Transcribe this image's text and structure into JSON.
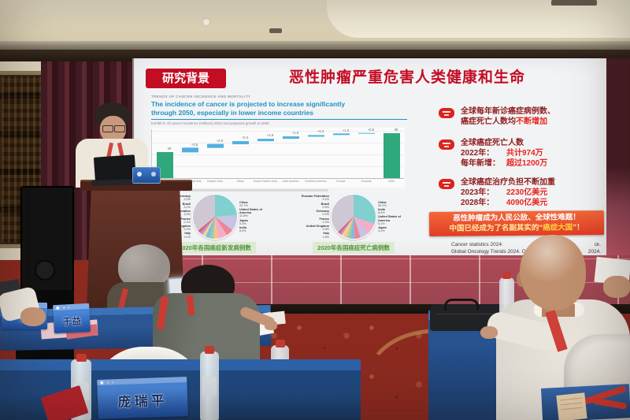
{
  "slide": {
    "section_tag": "研究背景",
    "title": "恶性肿瘤严重危害人类健康和生命",
    "trends": {
      "kicker": "TRENDS OF CANCER INCIDENCE AND MORTALITY",
      "headline1": "The incidence of cancer is projected to increase significantly",
      "headline2": "through 2050, especially in lower income countries",
      "exhibit_caption": "Exhibit 5: All cancer incidence (millions) 2022 and projected growth to 2050"
    },
    "pie_captions": {
      "left": "2020年各国癌症新发病例数",
      "right": "2020年各国癌症死亡病例数"
    },
    "bullets": [
      {
        "l1": "全球每年新诊癌症病例数、",
        "l2pre": "癌症死亡人数均",
        "l2em": "不断增加"
      },
      {
        "l1": "全球癌症死亡人数",
        "rows": [
          {
            "k": "2022年：",
            "v": "共计974万"
          },
          {
            "k": "每年新增：",
            "v": "超过1200万"
          }
        ]
      },
      {
        "l1": "全球癌症治疗负担不断加重",
        "rows": [
          {
            "k": "2023年：",
            "v": "2230亿美元"
          },
          {
            "k": "2028年：",
            "v": "4090亿美元"
          }
        ]
      }
    ],
    "banner": {
      "line1": "恶性肿瘤成为人民公敌、全球性难题！",
      "line2_pre": "中国已经成为了名副其实的“",
      "line2_em": "癌症大国",
      "line2_post": "”！"
    },
    "citation": {
      "l1_left": "Cancer statistics 2024:",
      "l1_right": "ck.",
      "l2_left": "Global Oncology Trends 2024. Outlook to",
      "l2_right": "2024."
    }
  },
  "name_cards": [
    {
      "text": "东"
    },
    {
      "text": "于益"
    },
    {
      "text": "庞瑞平"
    }
  ],
  "chart_data": [
    {
      "type": "bar",
      "subtype": "waterfall",
      "title": "All cancer incidence (millions), 2022 and projected growth to 2050",
      "categories": [
        "2022",
        "South-Central Asia",
        "Eastern Asia",
        "Africa",
        "South-Eastern Asia",
        "Latin America",
        "Northern America",
        "Europe",
        "Oceania",
        "2050"
      ],
      "values": [
        20.0,
        3.5,
        2.8,
        2.4,
        1.9,
        1.6,
        1.3,
        1.0,
        0.5,
        35.0
      ],
      "bar_roles": [
        "total",
        "inc",
        "inc",
        "inc",
        "inc",
        "inc",
        "inc",
        "inc",
        "inc",
        "total"
      ],
      "colors": {
        "total": "#2fa87c",
        "increment": "#4fb0e0"
      },
      "ylim": [
        0,
        38
      ],
      "grid": true,
      "values_estimated": true
    },
    {
      "type": "pie",
      "title": "2020年各国癌症新发病例数",
      "labels": [
        "China",
        "United States of America",
        "Japan",
        "India",
        "Germany",
        "Brazil",
        "Russian Federation",
        "France",
        "United Kingdom",
        "Italy",
        "Others"
      ],
      "values": [
        23.7,
        11.8,
        5.3,
        6.9,
        3.3,
        3.1,
        3.0,
        2.4,
        2.4,
        2.1,
        36.0
      ],
      "colors": [
        "#7fd0cf",
        "#c7c3e2",
        "#ef8496",
        "#f2aec6",
        "#f6c38c",
        "#93d1a6",
        "#85b9e4",
        "#e7df87",
        "#c690d6",
        "#e0606e",
        "#cdc8d4"
      ],
      "values_estimated": true
    },
    {
      "type": "pie",
      "title": "2020年各国癌症死亡病例数",
      "labels": [
        "China",
        "India",
        "United States of America",
        "Japan",
        "Russian Federation",
        "Brazil",
        "Germany",
        "France",
        "United Kingdom",
        "Italy",
        "Others"
      ],
      "values": [
        30.2,
        8.5,
        6.1,
        4.2,
        3.1,
        2.6,
        2.5,
        1.9,
        1.8,
        1.8,
        37.3
      ],
      "colors": [
        "#7fd0cf",
        "#f2aec6",
        "#c7c3e2",
        "#ef8496",
        "#85b9e4",
        "#93d1a6",
        "#f6c38c",
        "#e7df87",
        "#c690d6",
        "#e0606e",
        "#cdc8d4"
      ],
      "values_estimated": true
    }
  ]
}
